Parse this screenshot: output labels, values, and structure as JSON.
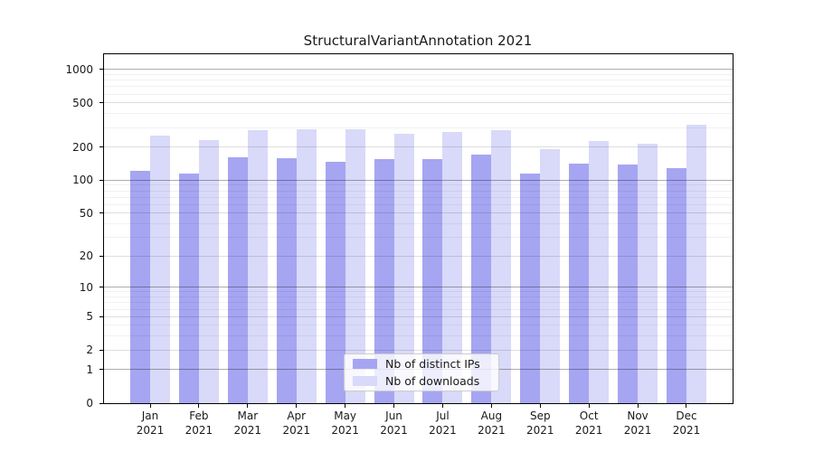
{
  "chart_data": {
    "type": "bar",
    "title": "StructuralVariantAnnotation 2021",
    "categories": [
      "Jan 2021",
      "Feb 2021",
      "Mar 2021",
      "Apr 2021",
      "May 2021",
      "Jun 2021",
      "Jul 2021",
      "Aug 2021",
      "Sep 2021",
      "Oct 2021",
      "Nov 2021",
      "Dec 2021"
    ],
    "series": [
      {
        "name": "Nb of distinct IPs",
        "color": "#a5a5f2",
        "values": [
          122,
          116,
          161,
          158,
          146,
          156,
          156,
          171,
          114,
          141,
          139,
          129
        ]
      },
      {
        "name": "Nb of downloads",
        "color": "#d9d9f9",
        "values": [
          252,
          232,
          286,
          291,
          290,
          262,
          272,
          286,
          190,
          228,
          214,
          318
        ]
      }
    ],
    "xlabel": "",
    "ylabel": "",
    "y_ticks": [
      0,
      1,
      2,
      5,
      10,
      20,
      50,
      100,
      200,
      500,
      1000
    ],
    "y_minor_ticks": [
      3,
      4,
      6,
      7,
      8,
      9,
      30,
      40,
      60,
      70,
      80,
      90,
      300,
      400,
      600,
      700,
      800,
      900
    ],
    "y_power_ticks": [
      1,
      10,
      100,
      1000
    ],
    "scale": "log10(1+x)",
    "ylim": [
      0,
      1370
    ],
    "grid": true,
    "legend_position": "inside-bottom-center"
  }
}
